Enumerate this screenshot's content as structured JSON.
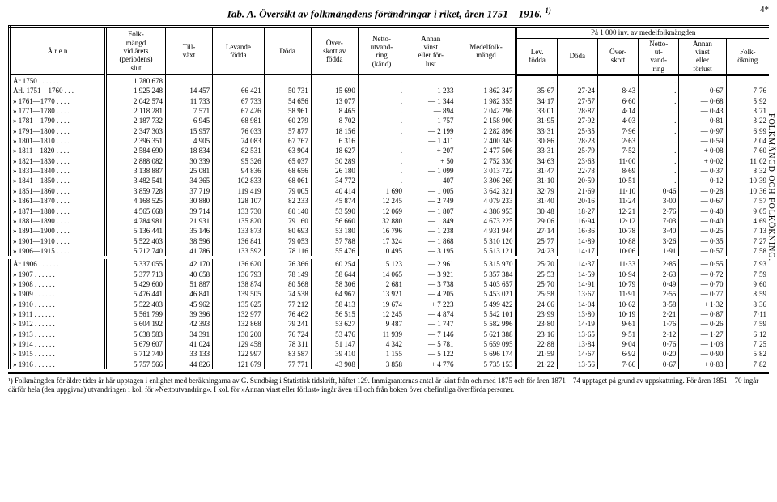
{
  "title": "Tab. A. Översikt av folkmängdens förändringar i riket, åren 1751—1916.",
  "title_sup": "1)",
  "side_text": "FOLKMÄNGD OCH FOLKÖKNING.",
  "headers": {
    "aren": "Å r e n",
    "folk": "Folk-\nmängd\nvid årets\n(periodens)\nslut",
    "till": "Till-\nväxt",
    "lev": "Levande\nfödda",
    "doda": "Döda",
    "over": "Över-\nskott av\nfödda",
    "netto": "Netto-\nutvand-\nring\n(känd)",
    "annan": "Annan\nvinst\neller för-\nlust",
    "medel": "Medelfolk-\nmängd",
    "group": "På 1 000 inv. av medelfolkmängden",
    "g_lev": "Lev.\nfödda",
    "g_doda": "Döda",
    "g_over": "Över-\nskott",
    "g_netto": "Netto-\nut-\nvand-\nring",
    "g_annan": "Annan\nvinst\neller\nförlust",
    "g_folk": "Folk-\nökning"
  },
  "rows": [
    [
      "År 1750 . . . . . .",
      "1 780 678",
      ".",
      ".",
      ".",
      ".",
      ".",
      ".",
      ".",
      ".",
      ".",
      ".",
      ".",
      ".",
      "."
    ],
    [
      "Årl. 1751—1760 . . .",
      "1 925 248",
      "14 457",
      "66 421",
      "50 731",
      "15 690",
      ".",
      "— 1 233",
      "1 862 347",
      "35·67",
      "27·24",
      "8·43",
      ".",
      "— 0·67",
      "7·76"
    ],
    [
      "» 1761—1770 . . . .",
      "2 042 574",
      "11 733",
      "67 733",
      "54 656",
      "13 077",
      ".",
      "— 1 344",
      "1 982 355",
      "34·17",
      "27·57",
      "6·60",
      ".",
      "— 0·68",
      "5·92"
    ],
    [
      "» 1771—1780 . . . .",
      "2 118 281",
      "7 571",
      "67 426",
      "58 961",
      "8 465",
      ".",
      "— 894",
      "2 042 296",
      "33·01",
      "28·87",
      "4·14",
      ".",
      "— 0·43",
      "3·71"
    ],
    [
      "» 1781—1790 . . . .",
      "2 187 732",
      "6 945",
      "68 981",
      "60 279",
      "8 702",
      ".",
      "— 1 757",
      "2 158 900",
      "31·95",
      "27·92",
      "4·03",
      ".",
      "— 0·81",
      "3·22"
    ],
    [
      "» 1791—1800 . . . .",
      "2 347 303",
      "15 957",
      "76 033",
      "57 877",
      "18 156",
      ".",
      "— 2 199",
      "2 282 896",
      "33·31",
      "25·35",
      "7·96",
      ".",
      "— 0·97",
      "6·99"
    ],
    [
      "» 1801—1810 . . . .",
      "2 396 351",
      "4 905",
      "74 083",
      "67 767",
      "6 316",
      ".",
      "— 1 411",
      "2 400 349",
      "30·86",
      "28·23",
      "2·63",
      ".",
      "— 0·59",
      "2·04"
    ],
    [
      "» 1811—1820 . . . .",
      "2 584 690",
      "18 834",
      "82 531",
      "63 904",
      "18 627",
      ".",
      "+ 207",
      "2 477 506",
      "33·31",
      "25·79",
      "7·52",
      ".",
      "+ 0·08",
      "7·60"
    ],
    [
      "» 1821—1830 . . . .",
      "2 888 082",
      "30 339",
      "95 326",
      "65 037",
      "30 289",
      ".",
      "+ 50",
      "2 752 330",
      "34·63",
      "23·63",
      "11·00",
      ".",
      "+ 0·02",
      "11·02"
    ],
    [
      "» 1831—1840 . . . .",
      "3 138 887",
      "25 081",
      "94 836",
      "68 656",
      "26 180",
      ".",
      "— 1 099",
      "3 013 722",
      "31·47",
      "22·78",
      "8·69",
      ".",
      "— 0·37",
      "8·32"
    ],
    [
      "» 1841—1850 . . . .",
      "3 482 541",
      "34 365",
      "102 833",
      "68 061",
      "34 772",
      ".",
      "— 407",
      "3 306 269",
      "31·10",
      "20·59",
      "10·51",
      ".",
      "— 0·12",
      "10·39"
    ],
    [
      "» 1851—1860 . . . .",
      "3 859 728",
      "37 719",
      "119 419",
      "79 005",
      "40 414",
      "1 690",
      "— 1 005",
      "3 642 321",
      "32·79",
      "21·69",
      "11·10",
      "0·46",
      "— 0·28",
      "10·36"
    ],
    [
      "» 1861—1870 . . . .",
      "4 168 525",
      "30 880",
      "128 107",
      "82 233",
      "45 874",
      "12 245",
      "— 2 749",
      "4 079 233",
      "31·40",
      "20·16",
      "11·24",
      "3·00",
      "— 0·67",
      "7·57"
    ],
    [
      "» 1871—1880 . . . .",
      "4 565 668",
      "39 714",
      "133 730",
      "80 140",
      "53 590",
      "12 069",
      "— 1 807",
      "4 386 953",
      "30·48",
      "18·27",
      "12·21",
      "2·76",
      "— 0·40",
      "9·05"
    ],
    [
      "» 1881—1890 . . . .",
      "4 784 981",
      "21 931",
      "135 820",
      "79 160",
      "56 660",
      "32 880",
      "— 1 849",
      "4 673 225",
      "29·06",
      "16·94",
      "12·12",
      "7·03",
      "— 0·40",
      "4·69"
    ],
    [
      "» 1891—1900 . . . .",
      "5 136 441",
      "35 146",
      "133 873",
      "80 693",
      "53 180",
      "16 796",
      "— 1 238",
      "4 931 944",
      "27·14",
      "16·36",
      "10·78",
      "3·40",
      "— 0·25",
      "7·13"
    ],
    [
      "» 1901—1910 . . . .",
      "5 522 403",
      "38 596",
      "136 841",
      "79 053",
      "57 788",
      "17 324",
      "— 1 868",
      "5 310 120",
      "25·77",
      "14·89",
      "10·88",
      "3·26",
      "— 0·35",
      "7·27"
    ],
    [
      "» 1906—1915 . . . .",
      "5 712 740",
      "41 786",
      "133 592",
      "78 116",
      "55 476",
      "10 495",
      "— 3 195",
      "5 513 121",
      "24·23",
      "14·17",
      "10·06",
      "1·91",
      "— 0·57",
      "7·58"
    ]
  ],
  "rows2": [
    [
      "År 1906 . . . . . .",
      "5 337 055",
      "42 170",
      "136 620",
      "76 366",
      "60 254",
      "15 123",
      "— 2 961",
      "5 315 970",
      "25·70",
      "14·37",
      "11·33",
      "2·85",
      "— 0·55",
      "7·93"
    ],
    [
      "» 1907 . . . . . .",
      "5 377 713",
      "40 658",
      "136 793",
      "78 149",
      "58 644",
      "14 065",
      "— 3 921",
      "5 357 384",
      "25·53",
      "14·59",
      "10·94",
      "2·63",
      "— 0·72",
      "7·59"
    ],
    [
      "» 1908 . . . . . .",
      "5 429 600",
      "51 887",
      "138 874",
      "80 568",
      "58 306",
      "2 681",
      "— 3 738",
      "5 403 657",
      "25·70",
      "14·91",
      "10·79",
      "0·49",
      "— 0·70",
      "9·60"
    ],
    [
      "» 1909 . . . . . .",
      "5 476 441",
      "46 841",
      "139 505",
      "74 538",
      "64 967",
      "13 921",
      "— 4 205",
      "5 453 021",
      "25·58",
      "13·67",
      "11·91",
      "2·55",
      "— 0·77",
      "8·59"
    ],
    [
      "» 1910 . . . . . .",
      "5 522 403",
      "45 962",
      "135 625",
      "77 212",
      "58 413",
      "19 674",
      "+ 7 223",
      "5 499 422",
      "24·66",
      "14·04",
      "10·62",
      "3·58",
      "+ 1·32",
      "8·36"
    ],
    [
      "» 1911 . . . . . .",
      "5 561 799",
      "39 396",
      "132 977",
      "76 462",
      "56 515",
      "12 245",
      "— 4 874",
      "5 542 101",
      "23·99",
      "13·80",
      "10·19",
      "2·21",
      "— 0·87",
      "7·11"
    ],
    [
      "» 1912 . . . . . .",
      "5 604 192",
      "42 393",
      "132 868",
      "79 241",
      "53 627",
      "9 487",
      "— 1 747",
      "5 582 996",
      "23·80",
      "14·19",
      "9·61",
      "1·76",
      "— 0·26",
      "7·59"
    ],
    [
      "» 1913 . . . . . .",
      "5 638 583",
      "34 391",
      "130 200",
      "76 724",
      "53 476",
      "11 939",
      "— 7 146",
      "5 621 388",
      "23·16",
      "13·65",
      "9·51",
      "2·12",
      "— 1·27",
      "6·12"
    ],
    [
      "» 1914 . . . . . .",
      "5 679 607",
      "41 024",
      "129 458",
      "78 311",
      "51 147",
      "4 342",
      "— 5 781",
      "5 659 095",
      "22·88",
      "13·84",
      "9·04",
      "0·76",
      "— 1·03",
      "7·25"
    ],
    [
      "» 1915 . . . . . .",
      "5 712 740",
      "33 133",
      "122 997",
      "83 587",
      "39 410",
      "1 155",
      "— 5 122",
      "5 696 174",
      "21·59",
      "14·67",
      "6·92",
      "0·20",
      "— 0·90",
      "5·82"
    ],
    [
      "» 1916 . . . . . .",
      "5 757 566",
      "44 826",
      "121 679",
      "77 771",
      "43 908",
      "3 858",
      "+ 4 776",
      "5 735 153",
      "21·22",
      "13·56",
      "7·66",
      "0·67",
      "+ 0·83",
      "7·82"
    ]
  ],
  "footnote": "¹) Folkmängden för äldre tider är här upptagen i enlighet med beräkningarna av G. Sundbärg i Statistisk tidskrift, häftet 129. Immigranternas antal är känt från och med 1875 och för åren 1871—74 upptaget på grund av uppskattning. För åren 1851—70 ingår därför hela (den uppgivna) utvandringen i kol. för »Nettoutvandring». I kol. för »Annan vinst eller förlust» ingår även till och från boken över obefintliga överförda personer."
}
